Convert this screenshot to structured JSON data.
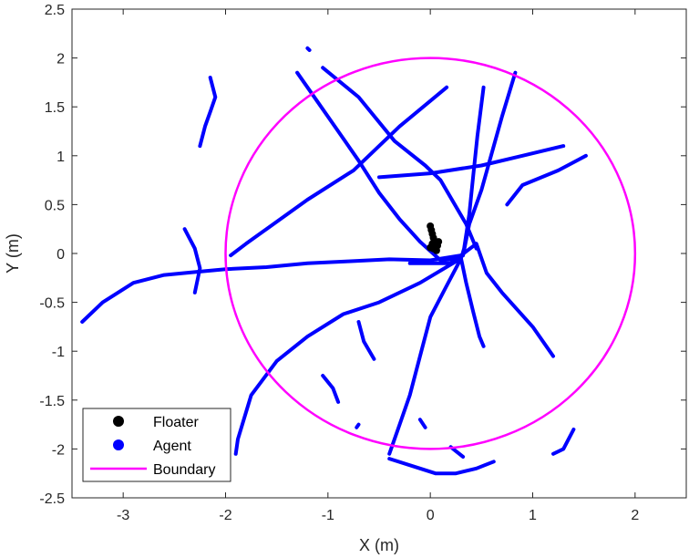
{
  "chart_data": {
    "type": "scatter",
    "title": "",
    "xlabel": "X (m)",
    "ylabel": "Y (m)",
    "xlim": [
      -3.5,
      2.5
    ],
    "ylim": [
      -2.5,
      2.5
    ],
    "xticks": [
      -3,
      -2,
      -1,
      0,
      1,
      2
    ],
    "yticks": [
      -2.5,
      -2,
      -1.5,
      -1,
      -0.5,
      0,
      0.5,
      1,
      1.5,
      2,
      2.5
    ],
    "xtick_labels": [
      "-3",
      "-2",
      "-1",
      "0",
      "1",
      "2"
    ],
    "ytick_labels": [
      "-2.5",
      "-2",
      "-1.5",
      "-1",
      "-0.5",
      "0",
      "0.5",
      "1",
      "1.5",
      "2",
      "2.5"
    ],
    "grid": false,
    "legend_position": "bottom-left",
    "series": [
      {
        "name": "Floater",
        "kind": "markers",
        "color": "#000000",
        "points": [
          [
            0.0,
            0.28
          ],
          [
            0.01,
            0.24
          ],
          [
            0.02,
            0.2
          ],
          [
            0.03,
            0.16
          ],
          [
            0.04,
            0.13
          ],
          [
            0.05,
            0.1
          ],
          [
            0.07,
            0.08
          ],
          [
            0.03,
            0.05
          ],
          [
            0.06,
            0.03
          ],
          [
            0.02,
            0.1
          ],
          [
            0.08,
            0.12
          ],
          [
            0.0,
            0.06
          ]
        ]
      },
      {
        "name": "Agent",
        "kind": "trajectories",
        "color": "#0000ff",
        "paths": [
          [
            [
              -3.4,
              -0.7
            ],
            [
              -3.2,
              -0.5
            ],
            [
              -2.9,
              -0.3
            ],
            [
              -2.6,
              -0.22
            ],
            [
              -2.3,
              -0.19
            ],
            [
              -2.0,
              -0.16
            ],
            [
              -1.6,
              -0.14
            ],
            [
              -1.2,
              -0.1
            ],
            [
              -0.8,
              -0.08
            ],
            [
              -0.4,
              -0.06
            ],
            [
              0.0,
              -0.07
            ],
            [
              0.3,
              -0.02
            ]
          ],
          [
            [
              -1.3,
              1.85
            ],
            [
              -1.1,
              1.55
            ],
            [
              -0.9,
              1.25
            ],
            [
              -0.7,
              0.95
            ],
            [
              -0.5,
              0.62
            ],
            [
              -0.3,
              0.35
            ],
            [
              -0.1,
              0.12
            ],
            [
              0.1,
              -0.07
            ],
            [
              0.3,
              -0.05
            ]
          ],
          [
            [
              -1.05,
              1.9
            ],
            [
              -0.7,
              1.6
            ],
            [
              -0.35,
              1.15
            ],
            [
              -0.05,
              0.9
            ],
            [
              0.1,
              0.75
            ],
            [
              0.35,
              0.3
            ],
            [
              0.45,
              0.05
            ]
          ],
          [
            [
              0.16,
              1.7
            ],
            [
              -0.3,
              1.3
            ],
            [
              -0.75,
              0.85
            ],
            [
              -1.2,
              0.55
            ],
            [
              -1.6,
              0.25
            ],
            [
              -1.8,
              0.1
            ],
            [
              -1.95,
              -0.02
            ]
          ],
          [
            [
              0.52,
              1.7
            ],
            [
              0.46,
              1.2
            ],
            [
              0.42,
              0.8
            ],
            [
              0.38,
              0.4
            ],
            [
              0.33,
              0.05
            ],
            [
              0.3,
              -0.05
            ]
          ],
          [
            [
              0.83,
              1.85
            ],
            [
              0.7,
              1.4
            ],
            [
              0.58,
              0.95
            ],
            [
              0.5,
              0.65
            ],
            [
              0.38,
              0.3
            ],
            [
              0.32,
              -0.02
            ]
          ],
          [
            [
              1.3,
              1.1
            ],
            [
              0.9,
              1.0
            ],
            [
              0.5,
              0.9
            ],
            [
              0.0,
              0.82
            ],
            [
              -0.5,
              0.78
            ]
          ],
          [
            [
              1.52,
              1.0
            ],
            [
              1.25,
              0.85
            ],
            [
              0.9,
              0.7
            ],
            [
              0.75,
              0.5
            ]
          ],
          [
            [
              -0.2,
              -0.1
            ],
            [
              0.2,
              -0.1
            ],
            [
              0.45,
              0.1
            ],
            [
              0.55,
              -0.2
            ],
            [
              0.7,
              -0.4
            ],
            [
              1.0,
              -0.75
            ],
            [
              1.2,
              -1.05
            ]
          ],
          [
            [
              0.3,
              -0.05
            ],
            [
              0.35,
              -0.3
            ],
            [
              0.42,
              -0.6
            ],
            [
              0.48,
              -0.85
            ],
            [
              0.52,
              -0.95
            ]
          ],
          [
            [
              0.3,
              -0.05
            ],
            [
              0.15,
              -0.35
            ],
            [
              0.0,
              -0.65
            ],
            [
              -0.1,
              -1.05
            ],
            [
              -0.2,
              -1.45
            ],
            [
              -0.3,
              -1.75
            ],
            [
              -0.4,
              -2.05
            ]
          ],
          [
            [
              0.3,
              -0.05
            ],
            [
              -0.1,
              -0.3
            ],
            [
              -0.5,
              -0.5
            ],
            [
              -0.85,
              -0.62
            ],
            [
              -1.2,
              -0.85
            ],
            [
              -1.5,
              -1.1
            ],
            [
              -1.75,
              -1.45
            ],
            [
              -1.88,
              -1.9
            ],
            [
              -1.9,
              -2.05
            ]
          ],
          [
            [
              -2.4,
              0.25
            ],
            [
              -2.3,
              0.05
            ],
            [
              -2.25,
              -0.15
            ],
            [
              -2.3,
              -0.4
            ]
          ],
          [
            [
              -2.15,
              1.8
            ],
            [
              -2.1,
              1.6
            ],
            [
              -2.15,
              1.45
            ],
            [
              -2.2,
              1.3
            ],
            [
              -2.25,
              1.1
            ]
          ],
          [
            [
              -0.7,
              -0.7
            ],
            [
              -0.65,
              -0.9
            ],
            [
              -0.55,
              -1.08
            ]
          ],
          [
            [
              -1.05,
              -1.25
            ],
            [
              -0.95,
              -1.38
            ],
            [
              -0.9,
              -1.52
            ]
          ],
          [
            [
              -0.4,
              -2.1
            ],
            [
              -0.1,
              -2.2
            ],
            [
              0.05,
              -2.25
            ],
            [
              0.25,
              -2.25
            ],
            [
              0.45,
              -2.2
            ],
            [
              0.62,
              -2.13
            ]
          ],
          [
            [
              1.4,
              -1.8
            ],
            [
              1.3,
              -2.0
            ],
            [
              1.2,
              -2.05
            ]
          ],
          [
            [
              0.2,
              -1.98
            ],
            [
              0.32,
              -2.08
            ]
          ],
          [
            [
              -0.1,
              -1.7
            ],
            [
              -0.05,
              -1.78
            ]
          ],
          [
            [
              -1.2,
              2.1
            ],
            [
              -1.18,
              2.08
            ]
          ],
          [
            [
              -0.7,
              -1.75
            ],
            [
              -0.72,
              -1.78
            ]
          ]
        ]
      },
      {
        "name": "Boundary",
        "kind": "circle",
        "color": "#ff00ff",
        "center": [
          0,
          0
        ],
        "radius": 2
      }
    ]
  }
}
